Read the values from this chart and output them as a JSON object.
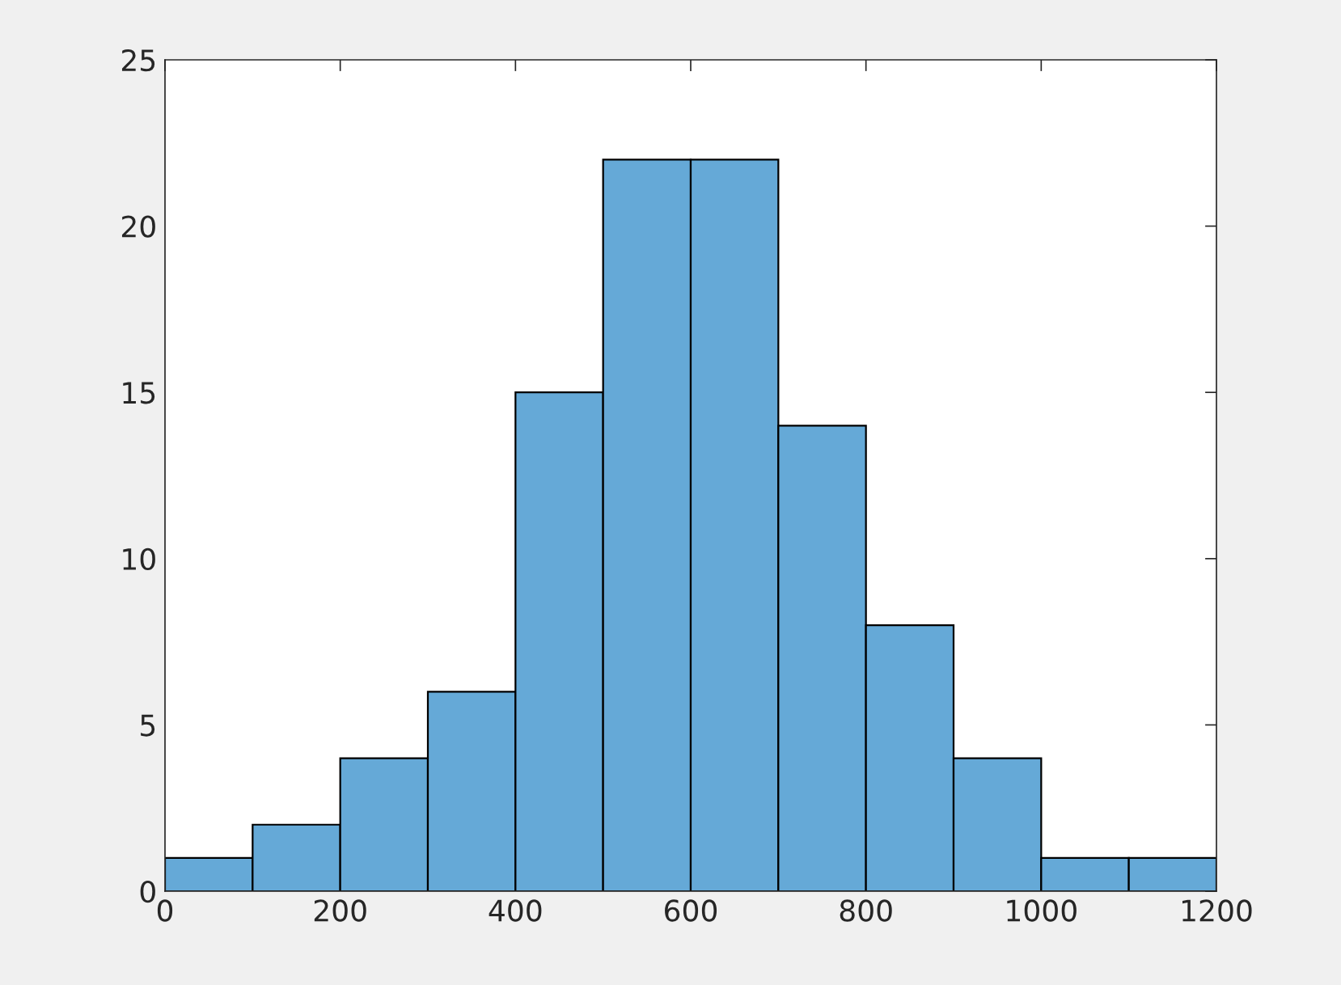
{
  "chart_data": {
    "type": "histogram",
    "bins": [
      0,
      100,
      200,
      300,
      400,
      500,
      600,
      700,
      800,
      900,
      1000,
      1100,
      1200
    ],
    "values": [
      1,
      2,
      4,
      6,
      15,
      22,
      22,
      14,
      8,
      4,
      1,
      1
    ],
    "color": "#65a9d7",
    "xlim": [
      0,
      1200
    ],
    "xticks": [
      0,
      200,
      400,
      600,
      800,
      1000,
      1200
    ],
    "ylim": [
      0,
      25
    ],
    "yticks": [
      0,
      5,
      10,
      15,
      20,
      25
    ],
    "grid": false
  }
}
